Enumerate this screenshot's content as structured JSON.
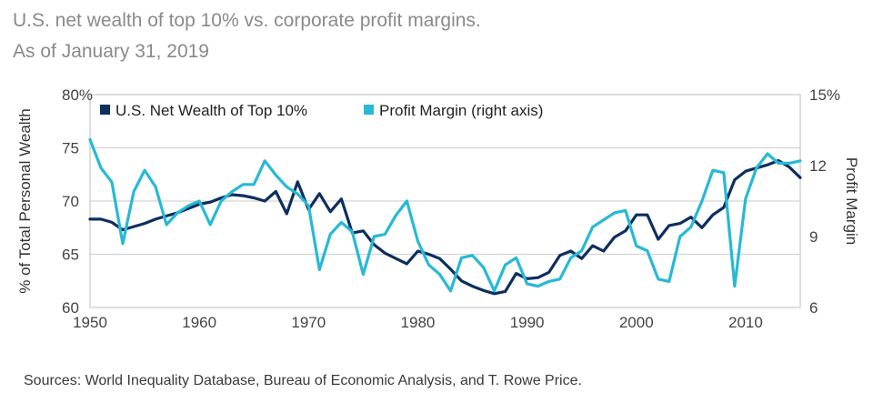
{
  "header": {
    "title": "U.S. net wealth of top 10% vs. corporate profit margins.",
    "subtitle": "As of January 31, 2019"
  },
  "footer": {
    "source": "Sources: World Inequality Database, Bureau of Economic Analysis, and T. Rowe Price."
  },
  "chart_data": {
    "type": "line",
    "title": "U.S. net wealth of top 10% vs. corporate profit margins.",
    "subtitle": "As of January 31, 2019",
    "xlabel": "",
    "ylabel": "% of Total Personal Wealth",
    "y2label": "Profit Margin",
    "xlim": [
      1950,
      2015
    ],
    "ylim": [
      60,
      80
    ],
    "y2lim": [
      6,
      15
    ],
    "x_ticks": [
      1950,
      1960,
      1970,
      1980,
      1990,
      2000,
      2010
    ],
    "x_tick_labels": [
      "1950",
      "1960",
      "1970",
      "1980",
      "1990",
      "2000",
      "2010"
    ],
    "y_ticks": [
      60,
      65,
      70,
      75,
      80
    ],
    "y_tick_labels": [
      "60",
      "65",
      "70",
      "75",
      "80%"
    ],
    "y2_ticks": [
      6,
      9,
      12,
      15
    ],
    "y2_tick_labels": [
      "6",
      "9",
      "12",
      "15%"
    ],
    "grid": true,
    "legend_position": "top-left",
    "x": [
      1950,
      1951,
      1952,
      1953,
      1954,
      1955,
      1956,
      1957,
      1958,
      1959,
      1960,
      1961,
      1962,
      1963,
      1964,
      1965,
      1966,
      1967,
      1968,
      1969,
      1970,
      1971,
      1972,
      1973,
      1974,
      1975,
      1976,
      1977,
      1978,
      1979,
      1980,
      1981,
      1982,
      1983,
      1984,
      1985,
      1986,
      1987,
      1988,
      1989,
      1990,
      1991,
      1992,
      1993,
      1994,
      1995,
      1996,
      1997,
      1998,
      1999,
      2000,
      2001,
      2002,
      2003,
      2004,
      2005,
      2006,
      2007,
      2008,
      2009,
      2010,
      2011,
      2012,
      2013,
      2014,
      2015
    ],
    "series": [
      {
        "name": "U.S. Net Wealth of Top 10%",
        "axis": "left",
        "color": "#0d2f5e",
        "values": [
          68.3,
          68.3,
          68.0,
          67.3,
          67.6,
          67.9,
          68.3,
          68.6,
          68.9,
          69.3,
          69.7,
          69.9,
          70.3,
          70.6,
          70.5,
          70.3,
          70.0,
          70.9,
          68.8,
          71.8,
          69.2,
          70.7,
          69.0,
          70.2,
          67.0,
          67.2,
          65.9,
          65.1,
          64.6,
          64.1,
          65.3,
          65.0,
          64.6,
          63.6,
          62.5,
          62.0,
          61.6,
          61.3,
          61.5,
          63.2,
          62.7,
          62.8,
          63.3,
          64.9,
          65.3,
          64.6,
          65.8,
          65.3,
          66.6,
          67.2,
          68.7,
          68.7,
          66.4,
          67.7,
          67.9,
          68.5,
          67.5,
          68.7,
          69.4,
          72.0,
          72.8,
          73.1,
          73.4,
          73.8,
          73.2,
          72.2
        ]
      },
      {
        "name": "Profit Margin (right axis)",
        "axis": "right",
        "color": "#27b9d6",
        "values": [
          13.1,
          11.9,
          11.3,
          8.7,
          10.9,
          11.8,
          11.1,
          9.5,
          10.0,
          10.3,
          10.5,
          9.5,
          10.5,
          10.9,
          11.2,
          11.2,
          12.2,
          11.6,
          11.1,
          10.8,
          10.3,
          7.6,
          9.1,
          9.6,
          9.2,
          7.4,
          9.0,
          9.1,
          9.9,
          10.5,
          8.8,
          7.8,
          7.4,
          6.7,
          8.1,
          8.2,
          7.7,
          6.7,
          7.8,
          8.1,
          7.0,
          6.9,
          7.1,
          7.2,
          8.1,
          8.4,
          9.4,
          9.7,
          10.0,
          10.1,
          8.6,
          8.4,
          7.2,
          7.1,
          9.0,
          9.4,
          10.5,
          11.8,
          11.7,
          6.9,
          10.6,
          11.9,
          12.5,
          12.1,
          12.1,
          12.2
        ]
      }
    ]
  }
}
